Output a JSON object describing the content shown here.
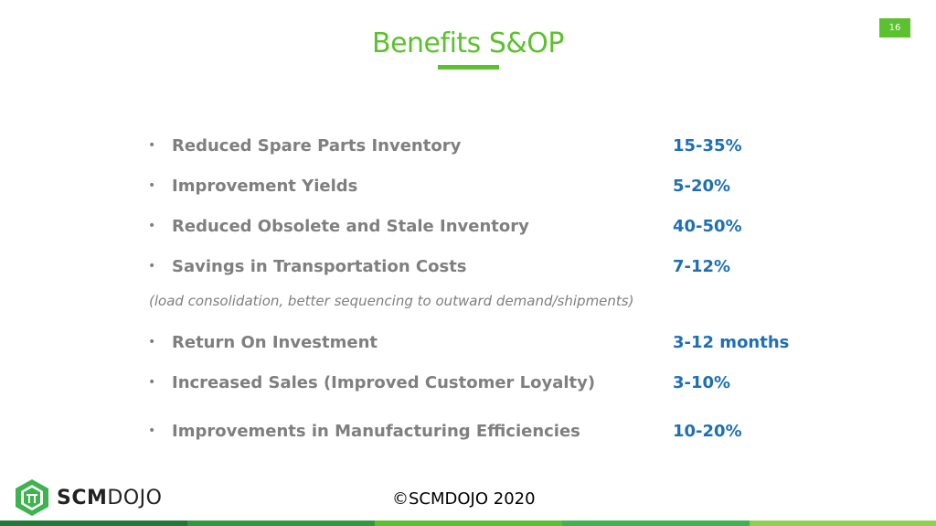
{
  "slide": {
    "title": "Benefits S&OP",
    "page_number": "16",
    "footer_copyright": "©SCMDOJO 2020"
  },
  "logo": {
    "text_strong": "SCM",
    "text_light": "DOJO",
    "icon": "scmdojo-hexagon-logo-icon"
  },
  "benefits": [
    {
      "bullet": "•",
      "label": "Reduced Spare Parts Inventory",
      "value": "15-35%"
    },
    {
      "bullet": "•",
      "label": "Improvement Yields",
      "value": "5-20%"
    },
    {
      "bullet": "•",
      "label": "Reduced Obsolete and Stale Inventory",
      "value": "40-50%"
    },
    {
      "bullet": "•",
      "label": "Savings in Transportation Costs",
      "value": "7-12%"
    },
    {
      "bullet": "•",
      "label": "Return On Investment",
      "value": "3-12 months"
    },
    {
      "bullet": "•",
      "label": "Increased Sales (Improved Customer Loyalty)",
      "value": "3-10%"
    },
    {
      "bullet": "•",
      "label": "Improvements in Manufacturing Efficiencies",
      "value": "10-20%"
    }
  ],
  "transport_note": "(load consolidation, better sequencing to outward demand/shipments)",
  "colors": {
    "accent_green": "#5cc12e",
    "value_blue": "#1f6fb5",
    "label_gray": "#7f7f7f"
  }
}
